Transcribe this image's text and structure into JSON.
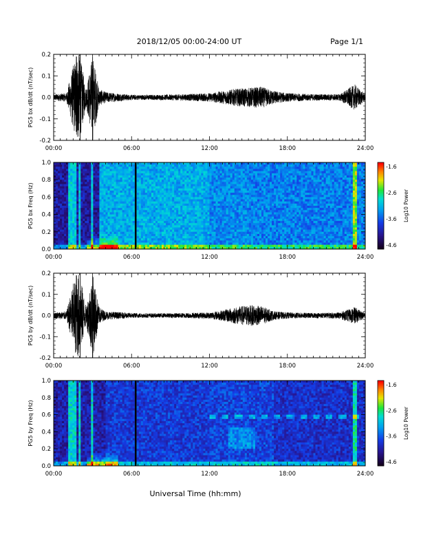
{
  "header": {
    "date_range": "2018/12/05  00:00-24:00 UT",
    "page": "Page 1/1"
  },
  "xlabel": "Universal Time (hh:mm)",
  "time_ticks": [
    "00:00",
    "06:00",
    "12:00",
    "18:00",
    "24:00"
  ],
  "colors": {
    "trace": "#000000",
    "background": "#ffffff"
  },
  "chart_data": [
    {
      "type": "line",
      "ylabel": "PG5 bx dB/dt (nT/sec)",
      "ylim": [
        -0.2,
        0.2
      ],
      "yticks": [
        "0.2",
        "0.1",
        "0.0",
        "-0.1",
        "-0.2"
      ],
      "x_hours": [
        0,
        1,
        1.5,
        1.8,
        2.0,
        2.5,
        3.0,
        3.5,
        4,
        6,
        8,
        10,
        12,
        13,
        14,
        15,
        16,
        17,
        18,
        20,
        22,
        23.2,
        24
      ],
      "envelope": [
        0.015,
        0.02,
        0.15,
        0.2,
        0.2,
        0.04,
        0.2,
        0.04,
        0.025,
        0.012,
        0.012,
        0.015,
        0.02,
        0.03,
        0.04,
        0.045,
        0.05,
        0.03,
        0.02,
        0.015,
        0.015,
        0.06,
        0.015
      ]
    },
    {
      "type": "heatmap",
      "ylabel": "PG5 bx Freq (Hz)",
      "ylim": [
        0.0,
        1.0
      ],
      "yticks": [
        "1.0",
        "0.8",
        "0.6",
        "0.4",
        "0.2",
        "0.0"
      ],
      "colorbar": {
        "label": "Log10 Power",
        "ticks": [
          "-1.6",
          "-2.6",
          "-3.6",
          "-4.6"
        ],
        "range": [
          -4.6,
          -1.6
        ]
      },
      "description": "spectrogram"
    },
    {
      "type": "line",
      "ylabel": "PG5 by dB/dt (nT/sec)",
      "ylim": [
        -0.2,
        0.2
      ],
      "yticks": [
        "0.2",
        "0.1",
        "0.0",
        "-0.1",
        "-0.2"
      ],
      "x_hours": [
        0,
        1,
        1.5,
        1.8,
        2.0,
        2.5,
        3.0,
        3.5,
        4,
        6,
        8,
        10,
        12,
        13,
        14,
        15,
        16,
        17,
        18,
        20,
        22,
        23.2,
        24
      ],
      "envelope": [
        0.015,
        0.02,
        0.15,
        0.2,
        0.2,
        0.04,
        0.2,
        0.04,
        0.02,
        0.012,
        0.01,
        0.012,
        0.015,
        0.025,
        0.04,
        0.05,
        0.045,
        0.02,
        0.015,
        0.012,
        0.015,
        0.04,
        0.012
      ]
    },
    {
      "type": "heatmap",
      "ylabel": "PG5 by Freq (Hz)",
      "ylim": [
        0.0,
        1.0
      ],
      "yticks": [
        "1.0",
        "0.8",
        "0.6",
        "0.4",
        "0.2",
        "0.0"
      ],
      "colorbar": {
        "label": "Log10 Power",
        "ticks": [
          "-1.6",
          "-2.6",
          "-3.6",
          "-4.6"
        ],
        "range": [
          -4.6,
          -1.6
        ]
      }
    }
  ]
}
